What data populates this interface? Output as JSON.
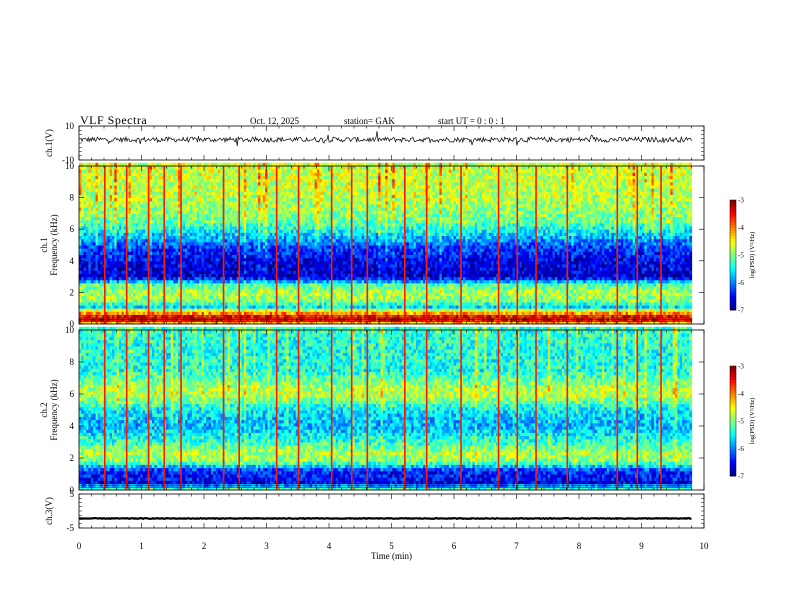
{
  "header": {
    "title": "VLF  Spectra",
    "date": "Oct. 12, 2025",
    "station": "station= GAK",
    "start": "start  UT =    0  : 0   : 1"
  },
  "colors": {
    "background": "#ffffff",
    "axis": "#000000",
    "colormap": [
      "#00007f",
      "#0000ff",
      "#007fff",
      "#00ffff",
      "#7fff7f",
      "#ffff00",
      "#ff7f00",
      "#ff0000",
      "#7f0000"
    ]
  },
  "chart_data": [
    {
      "type": "line",
      "id": "ch1-waveform",
      "ylabel": "ch.1(V)",
      "ylim": [
        -10,
        10
      ],
      "yticks": [
        "10",
        "-10"
      ],
      "xlim": [
        0,
        10
      ],
      "x_end": 9.8,
      "baseline": 2,
      "noise": 1.5
    },
    {
      "type": "heatmap",
      "id": "ch1-spectrogram",
      "ylabel": "ch.1\nFrequency  (kHz)",
      "ylabel_lines": [
        "ch.1",
        "Frequency  (kHz)"
      ],
      "ylim": [
        0,
        10
      ],
      "yticks": [
        "0",
        "2",
        "4",
        "6",
        "8",
        "10"
      ],
      "xlim": [
        0,
        10
      ],
      "x_end": 9.8,
      "zlim": [
        -7,
        -3
      ],
      "colorbar_label": "log(PSD) (V²/Hz)",
      "colorbar_ticks": [
        "-3",
        "-4",
        "-5",
        "-6",
        "-7"
      ],
      "profile": [
        {
          "f": 0.0,
          "z": -4.6
        },
        {
          "f": 0.3,
          "z": -3.4
        },
        {
          "f": 0.6,
          "z": -3.8
        },
        {
          "f": 0.8,
          "z": -4.3
        },
        {
          "f": 1.1,
          "z": -5.6
        },
        {
          "f": 1.5,
          "z": -5.0
        },
        {
          "f": 2.0,
          "z": -4.8
        },
        {
          "f": 2.5,
          "z": -5.2
        },
        {
          "f": 3.0,
          "z": -6.7
        },
        {
          "f": 4.0,
          "z": -6.6
        },
        {
          "f": 4.8,
          "z": -6.3
        },
        {
          "f": 5.5,
          "z": -5.8
        },
        {
          "f": 6.5,
          "z": -5.1
        },
        {
          "f": 8.0,
          "z": -4.8
        },
        {
          "f": 10.0,
          "z": -4.7
        }
      ],
      "bright_times": [
        0.4,
        0.75,
        1.1,
        1.35,
        1.62,
        2.3,
        2.55,
        3.15,
        3.5,
        4.03,
        4.35,
        4.6,
        5.2,
        5.55,
        6.1,
        6.7,
        7.0,
        7.3,
        7.8,
        8.6,
        8.92,
        9.3
      ]
    },
    {
      "type": "heatmap",
      "id": "ch2-spectrogram",
      "ylabel": "ch.2\nFrequency  (kHz)",
      "ylabel_lines": [
        "ch.2",
        "Frequency  (kHz)"
      ],
      "ylim": [
        0,
        10
      ],
      "yticks": [
        "0",
        "2",
        "4",
        "6",
        "8",
        "10"
      ],
      "xlim": [
        0,
        10
      ],
      "x_end": 9.8,
      "zlim": [
        -7,
        -3
      ],
      "colorbar_label": "log(PSD) (V²/Hz)",
      "colorbar_ticks": [
        "-3",
        "-4",
        "-5",
        "-6",
        "-7"
      ],
      "profile": [
        {
          "f": 0.0,
          "z": -5.0
        },
        {
          "f": 0.5,
          "z": -6.5
        },
        {
          "f": 1.2,
          "z": -6.4
        },
        {
          "f": 1.8,
          "z": -5.0
        },
        {
          "f": 2.3,
          "z": -4.8
        },
        {
          "f": 3.0,
          "z": -5.3
        },
        {
          "f": 4.0,
          "z": -5.8
        },
        {
          "f": 5.0,
          "z": -5.6
        },
        {
          "f": 6.0,
          "z": -4.7
        },
        {
          "f": 6.5,
          "z": -4.9
        },
        {
          "f": 7.5,
          "z": -5.4
        },
        {
          "f": 9.0,
          "z": -5.4
        },
        {
          "f": 10.0,
          "z": -5.3
        }
      ],
      "bright_times": [
        0.4,
        0.75,
        1.1,
        1.35,
        1.62,
        2.3,
        2.55,
        3.15,
        3.5,
        4.03,
        4.35,
        4.6,
        5.2,
        5.55,
        6.1,
        6.7,
        7.0,
        7.3,
        7.8,
        8.6,
        8.92,
        9.3
      ]
    },
    {
      "type": "line",
      "id": "ch3-waveform",
      "ylabel": "ch.3(V)",
      "ylim": [
        -5,
        5
      ],
      "yticks": [
        "5",
        "-5"
      ],
      "xlim": [
        0,
        10
      ],
      "x_end": 9.8,
      "baseline": -2.2,
      "noise": 0.1
    }
  ],
  "time_axis": {
    "label": "Time  (min)",
    "ticks": [
      "0",
      "1",
      "2",
      "3",
      "4",
      "5",
      "6",
      "7",
      "8",
      "9",
      "10"
    ]
  }
}
